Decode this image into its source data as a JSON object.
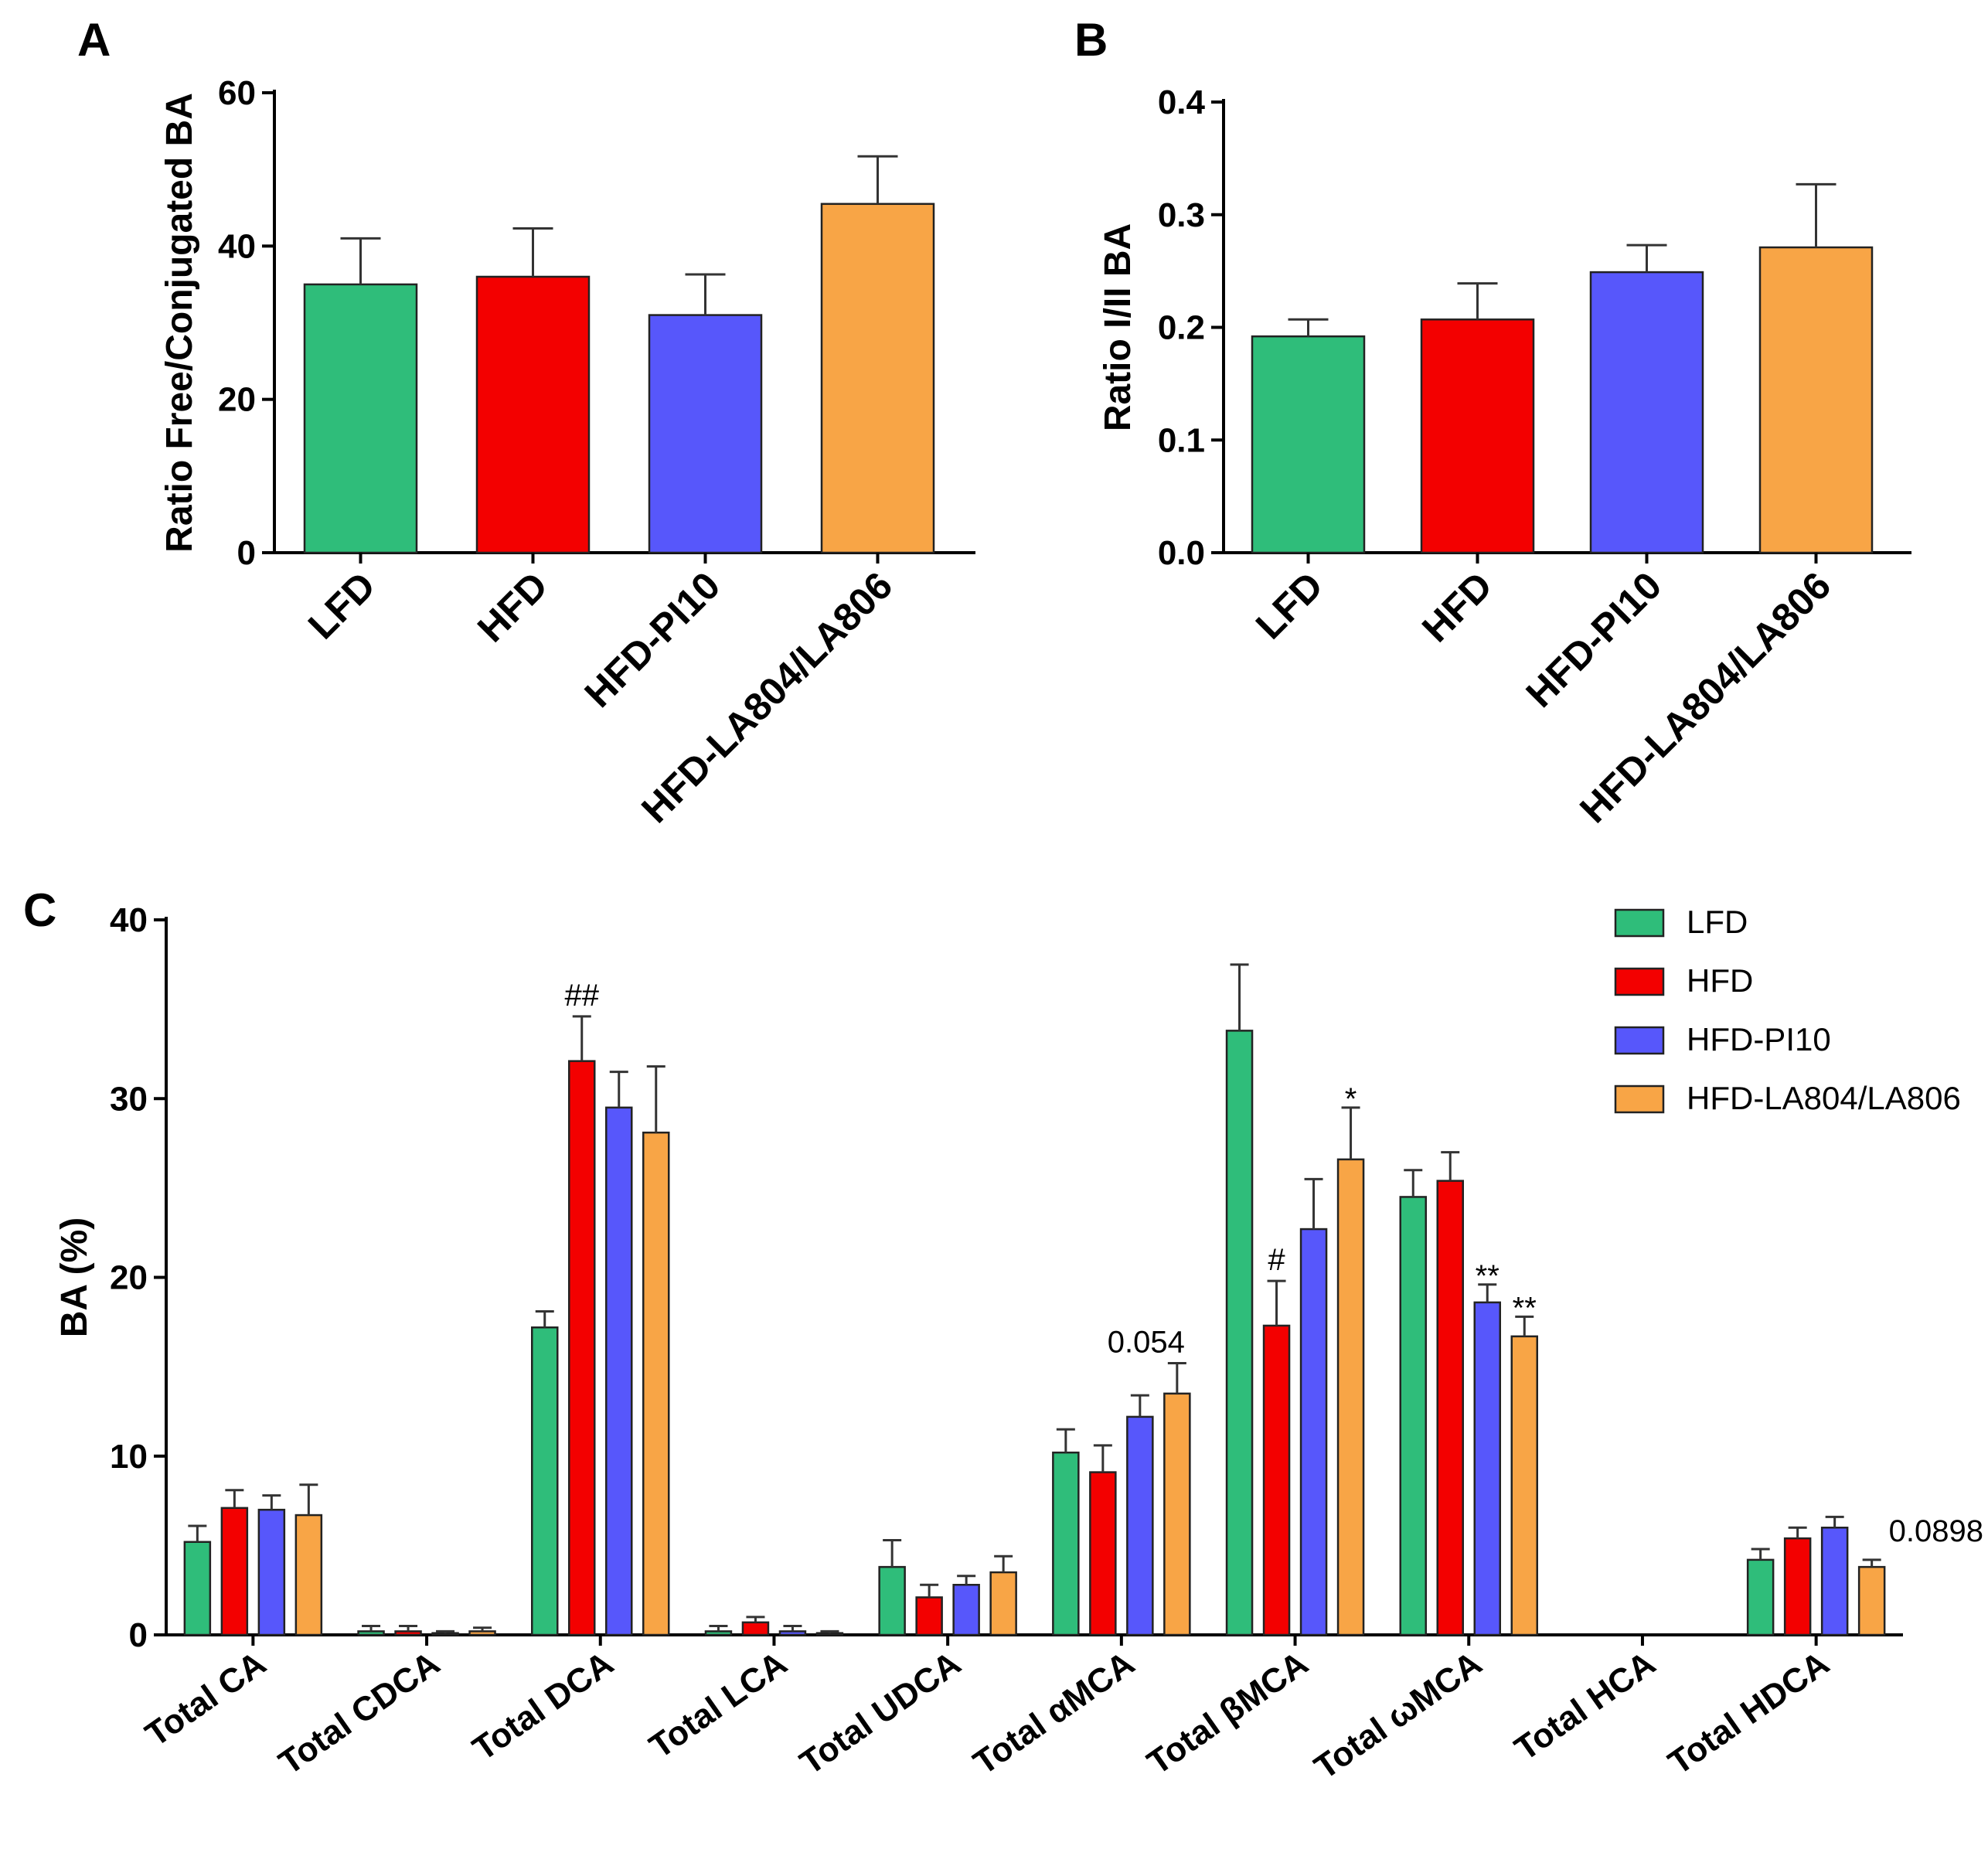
{
  "colors": {
    "LFD": "#2fbd7a",
    "HFD": "#f30000",
    "HFD-PI10": "#5757fb",
    "HFD-LA804/LA806": "#f8a546"
  },
  "panel_letters": {
    "A": "A",
    "B": "B",
    "C": "C"
  },
  "chart_data": [
    {
      "id": "A",
      "type": "bar",
      "ylabel": "Ratio Free/Conjugated BA",
      "ylim": [
        0,
        60
      ],
      "yticks": [
        0,
        20,
        40,
        60
      ],
      "categories": [
        "LFD",
        "HFD",
        "HFD-PI10",
        "HFD-LA804/LA806"
      ],
      "values": [
        35,
        36,
        31,
        45.5
      ],
      "errors": [
        6,
        6.3,
        5.3,
        6.2
      ]
    },
    {
      "id": "B",
      "type": "bar",
      "ylabel": "Ratio I/II BA",
      "ylim": [
        0,
        0.4
      ],
      "yticks": [
        "0.0",
        "0.1",
        "0.2",
        "0.3",
        "0.4"
      ],
      "categories": [
        "LFD",
        "HFD",
        "HFD-PI10",
        "HFD-LA804/LA806"
      ],
      "values": [
        0.192,
        0.207,
        0.249,
        0.271
      ],
      "errors": [
        0.015,
        0.032,
        0.024,
        0.056
      ]
    },
    {
      "id": "C",
      "type": "bar",
      "ylabel": "BA (%)",
      "ylim": [
        0,
        40
      ],
      "yticks": [
        0,
        10,
        20,
        30,
        40
      ],
      "categories": [
        "Total CA",
        "Total CDCA",
        "Total DCA",
        "Total LCA",
        "Total UDCA",
        "Total αMCA",
        "Total βMCA",
        "Total ωMCA",
        "Total HCA",
        "Total HDCA"
      ],
      "series": [
        {
          "name": "LFD",
          "values": [
            5.2,
            0.2,
            17.2,
            0.2,
            3.8,
            10.2,
            33.8,
            24.5,
            0,
            4.2
          ],
          "errors": [
            0.9,
            0.3,
            0.9,
            0.3,
            1.5,
            1.3,
            3.7,
            1.5,
            0,
            0.6
          ]
        },
        {
          "name": "HFD",
          "values": [
            7.1,
            0.2,
            32.1,
            0.7,
            2.1,
            9.1,
            17.3,
            25.4,
            0,
            5.4
          ],
          "errors": [
            1.0,
            0.3,
            2.5,
            0.3,
            0.7,
            1.5,
            2.5,
            1.6,
            0,
            0.6
          ]
        },
        {
          "name": "HFD-PI10",
          "values": [
            7.0,
            0.1,
            29.5,
            0.2,
            2.8,
            12.2,
            22.7,
            18.6,
            0,
            6.0
          ],
          "errors": [
            0.8,
            0.1,
            2.0,
            0.3,
            0.5,
            1.2,
            2.8,
            1.0,
            0,
            0.6
          ]
        },
        {
          "name": "HFD-LA804/LA806",
          "values": [
            6.7,
            0.2,
            28.1,
            0.1,
            3.5,
            13.5,
            26.6,
            16.7,
            0,
            3.8
          ],
          "errors": [
            1.7,
            0.2,
            3.7,
            0.1,
            0.9,
            1.7,
            2.9,
            1.1,
            0,
            0.4
          ]
        }
      ],
      "legend_position": "top-right",
      "annotations": [
        {
          "text": "##",
          "category": 2,
          "series": 1
        },
        {
          "text": "0.054",
          "category": 5,
          "series": 3
        },
        {
          "text": "#",
          "category": 6,
          "series": 1
        },
        {
          "text": "*",
          "category": 6,
          "series": 3
        },
        {
          "text": "**",
          "category": 7,
          "series": 2
        },
        {
          "text": "**",
          "category": 7,
          "series": 3
        },
        {
          "text": "0.0898",
          "category": 9,
          "series": 3
        }
      ]
    }
  ]
}
